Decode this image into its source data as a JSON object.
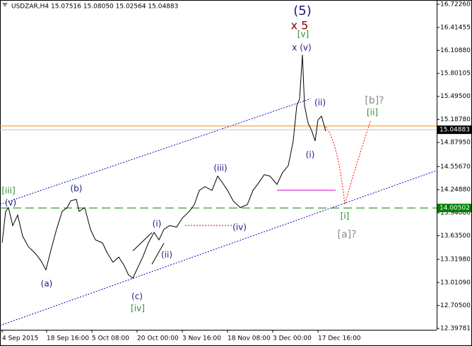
{
  "chart_data": {
    "type": "line",
    "title": "USDZAR,H4  15.07516 15.08050 15.02564 15.04883",
    "series": [
      {
        "name": "USDZAR",
        "color": "#000000",
        "x": [
          3,
          8,
          12,
          18,
          25,
          32,
          40,
          50,
          58,
          65,
          72,
          80,
          88,
          95,
          100,
          108,
          112,
          120,
          128,
          135,
          145,
          152,
          160,
          168,
          175,
          182,
          188,
          195,
          202,
          210,
          218,
          225,
          232,
          240,
          250,
          258,
          268,
          275,
          282,
          290,
          300,
          308,
          315,
          322,
          330,
          340,
          350,
          358,
          366,
          374,
          382,
          392,
          400,
          408,
          415,
          420,
          424,
          428,
          431,
          436,
          441,
          446,
          450,
          455,
          461
        ],
        "values": [
          13.54,
          13.96,
          14.01,
          13.77,
          13.91,
          13.63,
          13.49,
          13.4,
          13.3,
          13.18,
          13.44,
          13.72,
          13.96,
          14.01,
          14.1,
          14.12,
          13.96,
          14.01,
          13.72,
          13.58,
          13.54,
          13.4,
          13.28,
          13.35,
          13.25,
          13.11,
          13.07,
          13.21,
          13.35,
          13.54,
          13.68,
          13.58,
          13.72,
          13.77,
          13.75,
          13.87,
          13.96,
          14.05,
          14.24,
          14.29,
          14.24,
          14.43,
          14.34,
          14.24,
          14.1,
          14.01,
          14.05,
          14.24,
          14.34,
          14.45,
          14.43,
          14.32,
          14.48,
          14.57,
          14.9,
          15.37,
          15.46,
          16.05,
          15.37,
          15.14,
          15.04,
          14.9,
          15.18,
          15.23,
          15.03
        ]
      }
    ],
    "xlim": [
      0,
      618
    ],
    "ylim": [
      12.38,
      16.78
    ],
    "xticks": [
      {
        "value": 3,
        "label": "4 Sep 2015"
      },
      {
        "value": 66,
        "label": "18 Sep 16:00"
      },
      {
        "value": 130,
        "label": "5 Oct 08:00"
      },
      {
        "value": 194,
        "label": "20 Oct 00:00"
      },
      {
        "value": 258,
        "label": "3 Nov 16:00"
      },
      {
        "value": 322,
        "label": "18 Nov 08:00"
      },
      {
        "value": 386,
        "label": "3 Dec 00:00"
      },
      {
        "value": 450,
        "label": "17 Dec 16:00"
      }
    ],
    "yticks": [
      {
        "value": 16.7226,
        "label": "16.72260"
      },
      16.41455,
      {
        "value": 16.1088,
        "label": "16.10880"
      },
      15.80105,
      {
        "value": 15.495,
        "label": "15.49500"
      },
      {
        "value": 15.1878,
        "label": "15.18780"
      },
      {
        "value": 14.8795,
        "label": "14.87950"
      },
      {
        "value": 14.5567,
        "label": "14.55670"
      },
      {
        "value": 14.2488,
        "label": "14.24880"
      },
      {
        "value": 13.9408,
        "label": "13.94080"
      },
      {
        "value": 13.635,
        "label": "13.63500"
      },
      {
        "value": 13.3198,
        "label": "13.31980"
      },
      {
        "value": 13.0109,
        "label": "13.01090"
      },
      {
        "value": 12.705,
        "label": "12.70500"
      },
      12.39781
    ],
    "resistance_level": 15.1,
    "current_price": 15.04883,
    "support_level": 14.00502,
    "annotations": [
      "(5)",
      "x 5",
      "[v]",
      "x (v)",
      "(ii)",
      "[b]?",
      "[ii]",
      "(i)",
      "(iii)",
      "(b)",
      "[iii]",
      "(v)",
      "[i]",
      "[a]?",
      "(iv)",
      "(i)",
      "(ii)",
      "(a)",
      "(c)",
      "[iv]"
    ]
  }
}
